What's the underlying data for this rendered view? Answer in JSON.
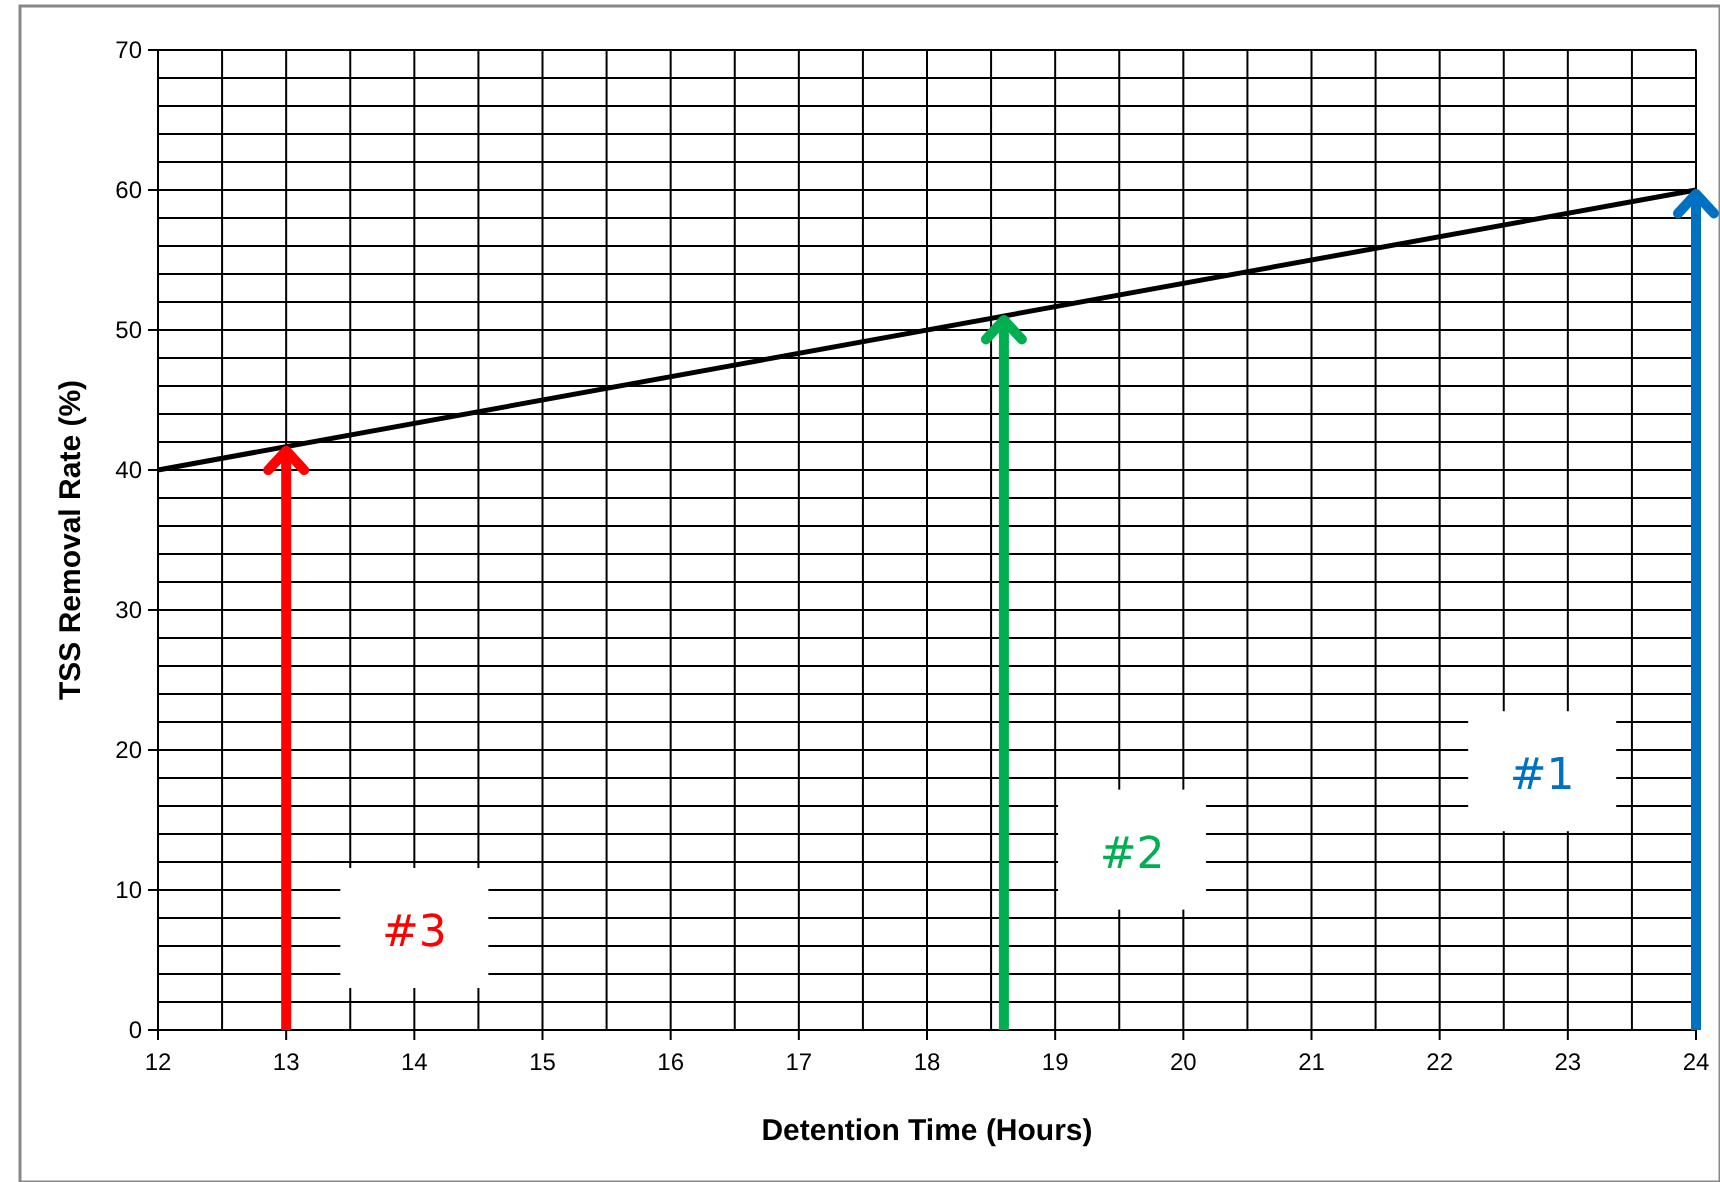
{
  "chart_data": {
    "type": "line",
    "xlabel": "Detention Time (Hours)",
    "ylabel": "TSS Removal Rate (%)",
    "x": [
      12,
      24
    ],
    "series": [
      {
        "color": "#000000",
        "values": [
          40,
          60
        ]
      }
    ],
    "ref_lines": [
      {
        "axis": "x",
        "value": 24,
        "color": "#0070c0"
      },
      {
        "axis": "x",
        "value": 18.6,
        "color": "#00b050"
      },
      {
        "axis": "x",
        "value": 13,
        "color": "#ff0000"
      }
    ],
    "annotations": [
      "#1",
      "#2",
      "#3"
    ],
    "xlim": [
      12,
      24
    ],
    "xticks": [
      12,
      13,
      14,
      15,
      16,
      17,
      18,
      19,
      20,
      21,
      22,
      23,
      24
    ],
    "ylim": [
      0,
      70
    ],
    "yticks": [
      0,
      10,
      20,
      30,
      40,
      50,
      60,
      70
    ],
    "grid": true,
    "marker": "none",
    "line_style": "solid"
  }
}
